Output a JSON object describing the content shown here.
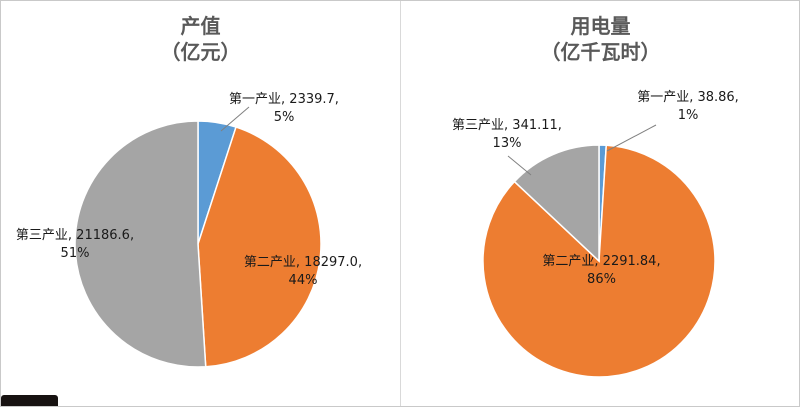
{
  "window": {
    "background": "#ffffff",
    "border_color": "#c9c9c9",
    "divider_color": "#d9d9d9"
  },
  "chart_data": [
    {
      "type": "pie",
      "title": "产值",
      "subtitle": "（亿元）",
      "legend": "none",
      "labels": [
        "第一产业",
        "第二产业",
        "第三产业"
      ],
      "values": [
        2339.7,
        18297.0,
        21186.6
      ],
      "percents": [
        5,
        44,
        51
      ],
      "colors": [
        "#5B9BD5",
        "#ED7D31",
        "#A5A5A5"
      ],
      "start_angle_deg": 0,
      "direction": "clockwise",
      "data_labels": [
        [
          "第一产业, 2339.7,",
          "5%"
        ],
        [
          "第二产业, 18297.0,",
          "44%"
        ],
        [
          "第三产业, 21186.6,",
          "51%"
        ]
      ]
    },
    {
      "type": "pie",
      "title": "用电量",
      "subtitle": "（亿千瓦时）",
      "legend": "none",
      "labels": [
        "第一产业",
        "第二产业",
        "第三产业"
      ],
      "values": [
        38.86,
        2291.84,
        341.11
      ],
      "percents": [
        1,
        86,
        13
      ],
      "colors": [
        "#5B9BD5",
        "#ED7D31",
        "#A5A5A5"
      ],
      "start_angle_deg": 0,
      "direction": "clockwise",
      "data_labels": [
        [
          "第一产业, 38.86,",
          "1%"
        ],
        [
          "第二产业, 2291.84,",
          "86%"
        ],
        [
          "第三产业, 341.11,",
          "13%"
        ]
      ]
    }
  ]
}
